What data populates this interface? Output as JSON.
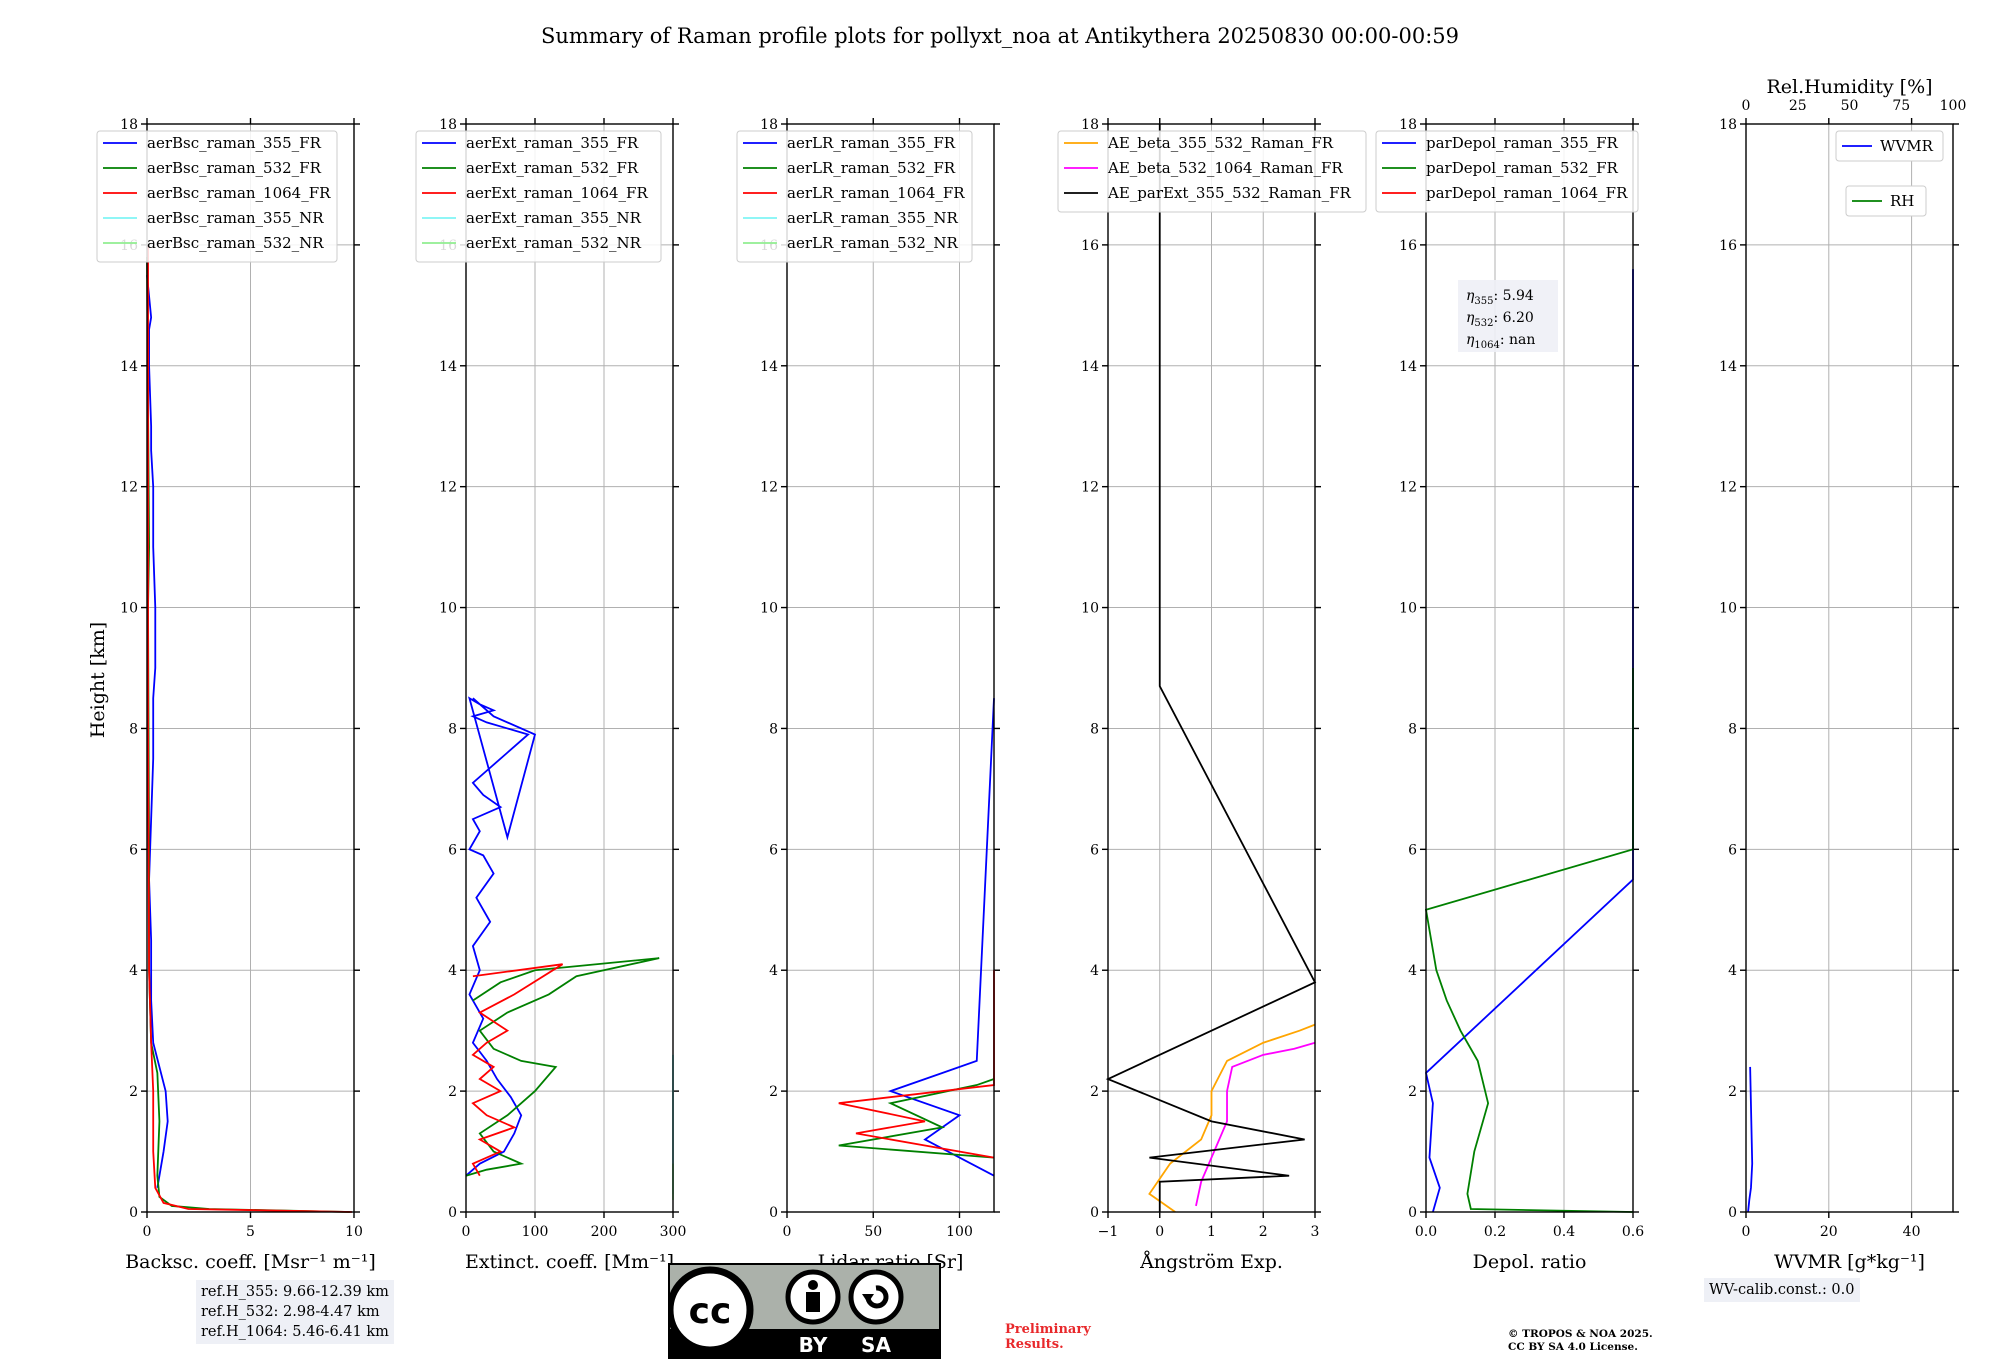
{
  "title": "Summary of Raman profile plots for pollyxt_noa at Antikythera 20250830 00:00-00:59",
  "ylabel": "Height [km]",
  "y_ticks": [
    "0",
    "2",
    "4",
    "6",
    "8",
    "10",
    "12",
    "14",
    "16",
    "18"
  ],
  "colors": {
    "blue": "#0000ff",
    "green": "#008000",
    "red": "#ff0000",
    "cyan": "#7ff5f5",
    "lightgreen": "#90ee90",
    "orange": "#ffa500",
    "magenta": "#ff00ff",
    "black": "#000000",
    "grid": "#b0b0b0"
  },
  "panels": [
    {
      "id": "backscatter",
      "xlabel": "Backsc. coeff. [Msr⁻¹ m⁻¹]",
      "xlim": [
        0,
        10
      ],
      "x_ticks": [
        "0",
        "5",
        "10"
      ],
      "legend": [
        "aerBsc_raman_355_FR",
        "aerBsc_raman_532_FR",
        "aerBsc_raman_1064_FR",
        "aerBsc_raman_355_NR",
        "aerBsc_raman_532_NR"
      ],
      "legend_colors": [
        "blue",
        "green",
        "red",
        "cyan",
        "lightgreen"
      ]
    },
    {
      "id": "extinction",
      "xlabel": "Extinct. coeff. [Mm⁻¹]",
      "xlim": [
        0,
        300
      ],
      "x_ticks": [
        "0",
        "100",
        "200",
        "300"
      ],
      "legend": [
        "aerExt_raman_355_FR",
        "aerExt_raman_532_FR",
        "aerExt_raman_1064_FR",
        "aerExt_raman_355_NR",
        "aerExt_raman_532_NR"
      ],
      "legend_colors": [
        "blue",
        "green",
        "red",
        "cyan",
        "lightgreen"
      ]
    },
    {
      "id": "lidar-ratio",
      "xlabel": "Lidar ratio [Sr]",
      "xlim": [
        0,
        120
      ],
      "x_ticks": [
        "0",
        "50",
        "100"
      ],
      "legend": [
        "aerLR_raman_355_FR",
        "aerLR_raman_532_FR",
        "aerLR_raman_1064_FR",
        "aerLR_raman_355_NR",
        "aerLR_raman_532_NR"
      ],
      "legend_colors": [
        "blue",
        "green",
        "red",
        "cyan",
        "lightgreen"
      ]
    },
    {
      "id": "angstrom",
      "xlabel": "Ångström Exp.",
      "xlim": [
        -1,
        3
      ],
      "x_ticks": [
        "−1",
        "0",
        "1",
        "2",
        "3"
      ],
      "legend": [
        "AE_beta_355_532_Raman_FR",
        "AE_beta_532_1064_Raman_FR",
        "AE_parExt_355_532_Raman_FR"
      ],
      "legend_colors": [
        "orange",
        "magenta",
        "black"
      ]
    },
    {
      "id": "depolarization",
      "xlabel": "Depol. ratio",
      "xlim": [
        0,
        0.6
      ],
      "x_ticks": [
        "0.0",
        "0.2",
        "0.4",
        "0.6"
      ],
      "legend": [
        "parDepol_raman_355_FR",
        "parDepol_raman_532_FR",
        "parDepol_raman_1064_FR"
      ],
      "legend_colors": [
        "blue",
        "green",
        "red"
      ]
    },
    {
      "id": "wvmr",
      "xlabel": "WVMR [g*kg⁻¹]",
      "xlim": [
        0,
        50
      ],
      "x_ticks": [
        "0",
        "20",
        "40"
      ],
      "top_xlabel": "Rel.Humidity [%]",
      "top_ticks": [
        "0",
        "25",
        "50",
        "75",
        "100"
      ],
      "legend": [
        "WVMR"
      ],
      "legend_colors": [
        "blue"
      ],
      "legend2": [
        "RH"
      ],
      "legend2_colors": [
        "green"
      ]
    }
  ],
  "eta": {
    "eta355": "5.94",
    "eta532": "6.20",
    "eta1064": "nan"
  },
  "ref_heights": [
    "ref.H_355: 9.66-12.39 km",
    "ref.H_532: 2.98-4.47 km",
    "ref.H_1064: 5.46-6.41 km"
  ],
  "wv_calib": "WV-calib.const.: 0.0",
  "preliminary": [
    "Preliminary",
    "Results."
  ],
  "copyright": [
    "© TROPOS & NOA 2025.",
    "CC BY SA 4.0 License."
  ],
  "logo": {
    "by": "BY",
    "sa": "SA",
    "cc": "cc"
  },
  "chart_data": [
    {
      "type": "line",
      "title": "",
      "xlabel": "Backsc. coeff. [Msr⁻¹ m⁻¹]",
      "ylabel": "Height [km]",
      "xlim": [
        0,
        10
      ],
      "ylim": [
        0,
        18
      ],
      "series": [
        {
          "name": "aerBsc_raman_355_FR",
          "x": [
            0.5,
            0.8,
            1.0,
            0.9,
            0.6,
            0.3,
            0.2,
            0.2,
            0.1,
            0.2,
            0.3,
            0.3,
            0.4,
            0.4,
            0.3,
            0.3,
            0.2,
            0.2,
            0.1,
            0.1,
            0.2,
            0.0
          ],
          "y": [
            0.4,
            1.0,
            1.5,
            2.0,
            2.4,
            2.8,
            3.5,
            4.5,
            5.5,
            6.5,
            7.5,
            8.5,
            9.0,
            10.0,
            11.0,
            12.0,
            12.6,
            13.0,
            14.0,
            14.6,
            14.8,
            15.5
          ]
        },
        {
          "name": "aerBsc_raman_532_FR",
          "x": [
            9.8,
            3.0,
            1.2,
            0.6,
            0.5,
            0.6,
            0.5,
            0.2,
            0.1,
            0.1,
            0.05,
            0.1,
            0.0
          ],
          "y": [
            0.0,
            0.05,
            0.1,
            0.25,
            0.6,
            1.5,
            2.3,
            2.8,
            4.0,
            6.0,
            10.0,
            11.0,
            15.8
          ]
        },
        {
          "name": "aerBsc_raman_1064_FR",
          "x": [
            9.9,
            2.0,
            0.8,
            0.4,
            0.3,
            0.3,
            0.2,
            0.1,
            0.05,
            0.05
          ],
          "y": [
            0.0,
            0.05,
            0.15,
            0.4,
            1.0,
            2.0,
            2.8,
            4.0,
            8.0,
            16.0
          ]
        }
      ]
    },
    {
      "type": "line",
      "title": "",
      "xlabel": "Extinct. coeff. [Mm⁻¹]",
      "ylabel": "Height [km]",
      "xlim": [
        0,
        300
      ],
      "ylim": [
        0,
        18
      ],
      "series": [
        {
          "name": "aerExt_raman_355_FR",
          "x": [
            0,
            20,
            55,
            70,
            80,
            65,
            45,
            30,
            10,
            25,
            5,
            20,
            10,
            35,
            15,
            40,
            25,
            5,
            20,
            10,
            50,
            25,
            10,
            30,
            60,
            90,
            60,
            30,
            10,
            40,
            20,
            5,
            60,
            100,
            40,
            10
          ],
          "y": [
            0.6,
            0.8,
            1.0,
            1.3,
            1.6,
            1.9,
            2.2,
            2.5,
            2.8,
            3.2,
            3.6,
            4.0,
            4.4,
            4.8,
            5.2,
            5.6,
            5.9,
            6.0,
            6.3,
            6.5,
            6.7,
            6.9,
            7.1,
            7.3,
            7.6,
            7.9,
            8.0,
            8.1,
            8.2,
            8.3,
            8.4,
            8.5,
            6.2,
            7.9,
            8.2,
            8.5
          ]
        },
        {
          "name": "aerExt_raman_532_FR",
          "x": [
            0,
            30,
            80,
            40,
            20,
            60,
            100,
            130,
            80,
            40,
            20,
            60,
            120,
            160,
            280,
            100,
            50,
            10
          ],
          "y": [
            0.6,
            0.7,
            0.8,
            1.0,
            1.3,
            1.6,
            2.0,
            2.4,
            2.5,
            2.7,
            3.0,
            3.3,
            3.6,
            3.9,
            4.2,
            4.0,
            3.8,
            3.5
          ]
        },
        {
          "name": "aerExt_raman_1064_FR",
          "x": [
            20,
            10,
            50,
            20,
            70,
            30,
            10,
            50,
            20,
            40,
            10,
            30,
            60,
            20,
            70,
            140,
            10
          ],
          "y": [
            0.6,
            0.8,
            1.0,
            1.2,
            1.4,
            1.6,
            1.8,
            2.0,
            2.2,
            2.4,
            2.6,
            2.8,
            3.0,
            3.3,
            3.6,
            4.1,
            3.9
          ]
        },
        {
          "name": "aerExt_raman_355_NR",
          "x": [
            300,
            300,
            300,
            300,
            300,
            300
          ],
          "y": [
            0.3,
            0.7,
            1.2,
            1.5,
            1.8,
            2.6
          ]
        },
        {
          "name": "aerExt_raman_532_NR",
          "x": [
            300,
            300,
            300
          ],
          "y": [
            0.2,
            0.5,
            0.8
          ]
        }
      ]
    },
    {
      "type": "line",
      "title": "",
      "xlabel": "Lidar ratio [Sr]",
      "ylabel": "Height [km]",
      "xlim": [
        0,
        120
      ],
      "ylim": [
        0,
        18
      ],
      "series": [
        {
          "name": "aerLR_raman_355_FR",
          "x": [
            120,
            80,
            100,
            60,
            90,
            110,
            120
          ],
          "y": [
            0.6,
            1.2,
            1.6,
            2.0,
            2.3,
            2.5,
            8.5
          ]
        },
        {
          "name": "aerLR_raman_532_FR",
          "x": [
            120,
            30,
            90,
            60,
            110,
            120
          ],
          "y": [
            0.9,
            1.1,
            1.4,
            1.8,
            2.1,
            2.2
          ]
        },
        {
          "name": "aerLR_raman_1064_FR",
          "x": [
            120,
            40,
            80,
            30,
            120,
            120
          ],
          "y": [
            0.9,
            1.3,
            1.5,
            1.8,
            2.1,
            4.0
          ]
        }
      ]
    },
    {
      "type": "line",
      "title": "",
      "xlabel": "Ångström Exp.",
      "ylabel": "Height [km]",
      "xlim": [
        -1,
        3
      ],
      "ylim": [
        0,
        18
      ],
      "series": [
        {
          "name": "AE_beta_355_532_Raman_FR",
          "x": [
            0.3,
            -0.2,
            0.2,
            0.8,
            1.0,
            1.0,
            1.3,
            2.0,
            2.7,
            3.0
          ],
          "y": [
            0.0,
            0.3,
            0.8,
            1.2,
            1.6,
            2.0,
            2.5,
            2.8,
            3.0,
            3.1
          ]
        },
        {
          "name": "AE_beta_532_1064_Raman_FR",
          "x": [
            0.7,
            0.8,
            1.3,
            1.3,
            1.4,
            2.0,
            2.6,
            3.0
          ],
          "y": [
            0.1,
            0.5,
            1.5,
            2.0,
            2.4,
            2.6,
            2.7,
            2.8
          ]
        },
        {
          "name": "AE_parExt_355_532_Raman_FR",
          "x": [
            0.0,
            0.0,
            2.5,
            -0.2,
            2.8,
            1.0,
            -1.0,
            3.0,
            0.0,
            0.0
          ],
          "y": [
            0.0,
            0.5,
            0.6,
            0.9,
            1.2,
            1.5,
            2.2,
            3.8,
            8.7,
            18.0
          ]
        }
      ]
    },
    {
      "type": "line",
      "title": "",
      "xlabel": "Depol. ratio",
      "ylabel": "Height [km]",
      "xlim": [
        0,
        0.6
      ],
      "ylim": [
        0,
        18
      ],
      "series": [
        {
          "name": "parDepol_raman_355_FR",
          "x": [
            0.02,
            0.04,
            0.01,
            0.02,
            0.0,
            0.6,
            0.6,
            0.6
          ],
          "y": [
            0.0,
            0.4,
            0.9,
            1.8,
            2.3,
            5.5,
            8.0,
            15.6
          ]
        },
        {
          "name": "parDepol_raman_532_FR",
          "x": [
            0.6,
            0.13,
            0.12,
            0.14,
            0.18,
            0.15,
            0.1,
            0.06,
            0.03,
            0.0,
            0.6,
            0.6
          ],
          "y": [
            0.0,
            0.05,
            0.3,
            1.0,
            1.8,
            2.5,
            3.0,
            3.5,
            4.0,
            5.0,
            6.0,
            9.0
          ]
        },
        {
          "name": "parDepol_raman_1064_FR",
          "x": [],
          "y": []
        }
      ]
    },
    {
      "type": "line",
      "title": "",
      "xlabel": "WVMR [g*kg⁻¹]",
      "ylabel": "Height [km]",
      "xlim": [
        0,
        50
      ],
      "ylim": [
        0,
        18
      ],
      "series": [
        {
          "name": "WVMR",
          "x": [
            0.5,
            0.8,
            1.2,
            1.5,
            1.0
          ],
          "y": [
            0.0,
            0.2,
            0.4,
            0.8,
            2.4
          ]
        },
        {
          "name": "RH",
          "x": [],
          "y": []
        }
      ]
    }
  ]
}
